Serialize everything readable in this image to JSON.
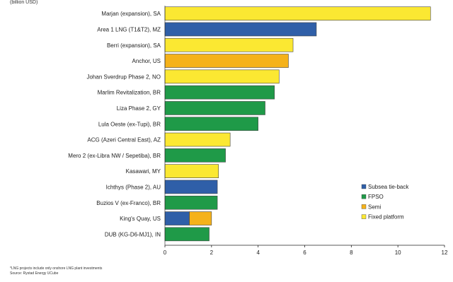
{
  "unit_label": "(billion USD)",
  "footnote": "*LNG projects include only onshore LNG plant investments",
  "source": "Source: Rystad Energy UCube",
  "colors": {
    "Subsea tie-back": "#2f5fa8",
    "FPSO": "#1f9a48",
    "Semi": "#f5b21a",
    "Fixed platform": "#fbe832"
  },
  "chart_data": {
    "type": "bar",
    "orientation": "horizontal",
    "xlim": [
      0,
      12
    ],
    "xticks": [
      0,
      2,
      4,
      6,
      8,
      10,
      12
    ],
    "legend_position": "bottom-right",
    "legend": [
      "Subsea tie-back",
      "FPSO",
      "Semi",
      "Fixed platform"
    ],
    "categories": [
      "Marjan (expansion), SA",
      "Area 1 LNG (T1&T2), MZ",
      "Berri (expansion), SA",
      "Anchor, US",
      "Johan Sverdrup Phase 2, NO",
      "Marlim Revitalization, BR",
      "Liza Phase 2, GY",
      "Lula Oeste (ex-Tupi), BR",
      "ACG (Azeri Central East), AZ",
      "Mero 2 (ex-Libra NW / Sepetiba), BR",
      "Kasawari, MY",
      "Ichthys (Phase 2), AU",
      "Buzios V (ex-Franco), BR",
      "King's Quay, US",
      "DUB (KG-D6-MJ1), IN"
    ],
    "bars": [
      [
        {
          "type": "Fixed platform",
          "value": 11.4
        }
      ],
      [
        {
          "type": "Subsea tie-back",
          "value": 6.5
        }
      ],
      [
        {
          "type": "Fixed platform",
          "value": 5.5
        }
      ],
      [
        {
          "type": "Semi",
          "value": 5.3
        }
      ],
      [
        {
          "type": "Fixed platform",
          "value": 4.9
        }
      ],
      [
        {
          "type": "FPSO",
          "value": 4.7
        }
      ],
      [
        {
          "type": "FPSO",
          "value": 4.3
        }
      ],
      [
        {
          "type": "FPSO",
          "value": 4.0
        }
      ],
      [
        {
          "type": "Fixed platform",
          "value": 2.8
        }
      ],
      [
        {
          "type": "FPSO",
          "value": 2.6
        }
      ],
      [
        {
          "type": "Fixed platform",
          "value": 2.3
        }
      ],
      [
        {
          "type": "Subsea tie-back",
          "value": 2.25
        }
      ],
      [
        {
          "type": "FPSO",
          "value": 2.25
        }
      ],
      [
        {
          "type": "Subsea tie-back",
          "value": 1.05
        },
        {
          "type": "Semi",
          "value": 0.95
        }
      ],
      [
        {
          "type": "FPSO",
          "value": 1.9
        }
      ]
    ]
  }
}
